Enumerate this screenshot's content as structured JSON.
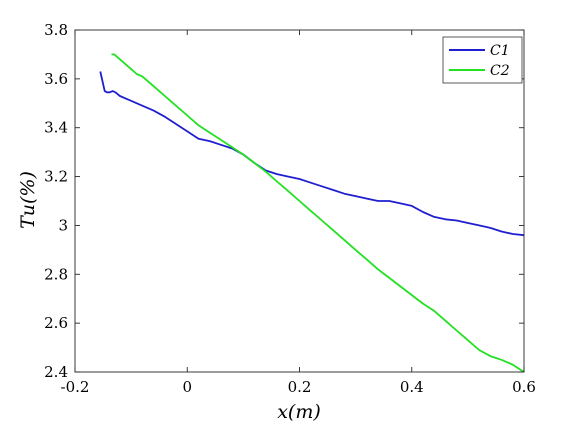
{
  "chart_data": {
    "type": "line",
    "title": "",
    "xlabel": "x(m)",
    "ylabel": "Tu(%)",
    "xlim": [
      -0.2,
      0.6
    ],
    "ylim": [
      2.4,
      3.8
    ],
    "xticks": [
      -0.2,
      0,
      0.2,
      0.4,
      0.6
    ],
    "xtick_labels": [
      "-0.2",
      "0",
      "0.2",
      "0.4",
      "0.6"
    ],
    "yticks": [
      2.4,
      2.6,
      2.8,
      3.0,
      3.2,
      3.4,
      3.6,
      3.8
    ],
    "ytick_labels": [
      "2.4",
      "2.6",
      "2.8",
      "3",
      "3.2",
      "3.4",
      "3.6",
      "3.8"
    ],
    "grid": false,
    "legend_position": "top-right",
    "series": [
      {
        "name": "C1",
        "color": "#1f1fd0",
        "x": [
          -0.155,
          -0.147,
          -0.143,
          -0.138,
          -0.133,
          -0.128,
          -0.12,
          -0.11,
          -0.1,
          -0.08,
          -0.06,
          -0.04,
          -0.02,
          0.0,
          0.02,
          0.04,
          0.06,
          0.08,
          0.1,
          0.12,
          0.14,
          0.16,
          0.18,
          0.2,
          0.22,
          0.24,
          0.26,
          0.28,
          0.3,
          0.32,
          0.34,
          0.36,
          0.38,
          0.4,
          0.42,
          0.44,
          0.46,
          0.48,
          0.5,
          0.52,
          0.54,
          0.56,
          0.58,
          0.6
        ],
        "y": [
          3.63,
          3.55,
          3.545,
          3.545,
          3.55,
          3.545,
          3.53,
          3.52,
          3.51,
          3.49,
          3.47,
          3.445,
          3.415,
          3.385,
          3.355,
          3.345,
          3.33,
          3.315,
          3.29,
          3.255,
          3.225,
          3.21,
          3.2,
          3.19,
          3.175,
          3.16,
          3.145,
          3.13,
          3.12,
          3.11,
          3.1,
          3.1,
          3.09,
          3.08,
          3.055,
          3.035,
          3.025,
          3.02,
          3.01,
          3.0,
          2.99,
          2.975,
          2.965,
          2.96
        ]
      },
      {
        "name": "C2",
        "color": "#22e022",
        "x": [
          -0.135,
          -0.13,
          -0.12,
          -0.11,
          -0.1,
          -0.09,
          -0.08,
          -0.06,
          -0.04,
          -0.02,
          0.0,
          0.02,
          0.04,
          0.06,
          0.08,
          0.1,
          0.12,
          0.14,
          0.16,
          0.18,
          0.2,
          0.22,
          0.24,
          0.26,
          0.28,
          0.3,
          0.32,
          0.34,
          0.36,
          0.38,
          0.4,
          0.42,
          0.44,
          0.46,
          0.48,
          0.5,
          0.52,
          0.54,
          0.56,
          0.58,
          0.6
        ],
        "y": [
          3.7,
          3.7,
          3.68,
          3.66,
          3.64,
          3.62,
          3.61,
          3.57,
          3.53,
          3.49,
          3.45,
          3.41,
          3.38,
          3.35,
          3.32,
          3.29,
          3.255,
          3.22,
          3.18,
          3.14,
          3.1,
          3.06,
          3.02,
          2.98,
          2.94,
          2.9,
          2.86,
          2.82,
          2.785,
          2.75,
          2.715,
          2.68,
          2.65,
          2.61,
          2.57,
          2.53,
          2.49,
          2.465,
          2.45,
          2.43,
          2.4
        ]
      }
    ]
  }
}
